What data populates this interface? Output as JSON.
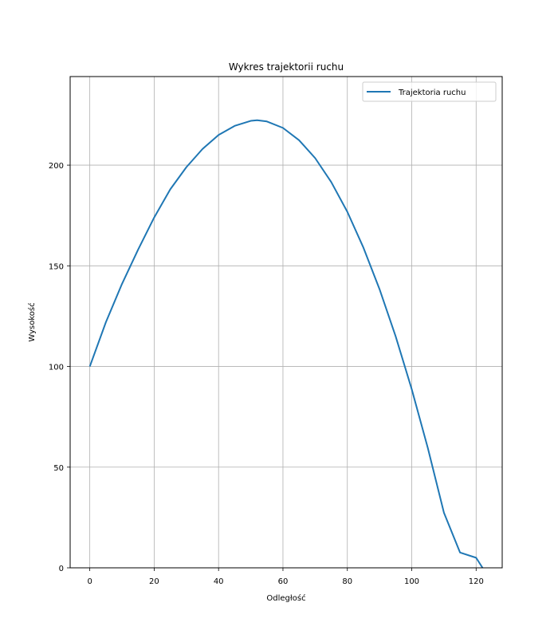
{
  "chart_data": {
    "type": "line",
    "title": "Wykres trajektorii ruchu",
    "xlabel": "Odległość",
    "ylabel": "Wysokość",
    "xlim": [
      -6.1,
      128.1
    ],
    "ylim": [
      0,
      244
    ],
    "x_ticks": [
      0,
      20,
      40,
      60,
      80,
      100,
      120
    ],
    "y_ticks": [
      0,
      50,
      100,
      150,
      200
    ],
    "grid": true,
    "legend_position": "upper right",
    "series": [
      {
        "name": "Trajektoria ruchu",
        "color": "#1f77b4",
        "x": [
          0,
          5,
          10,
          15,
          20,
          25,
          30,
          35,
          40,
          45,
          50,
          52,
          55,
          60,
          65,
          70,
          75,
          80,
          85,
          90,
          95,
          100,
          105,
          110,
          115,
          120,
          122
        ],
        "y": [
          100,
          122,
          141,
          158,
          174,
          188,
          199,
          208,
          215,
          219.5,
          222,
          222.3,
          221.7,
          218.5,
          212.4,
          203.5,
          191.6,
          176.8,
          159,
          138.4,
          115,
          88.7,
          59.5,
          27.4,
          7.6,
          5,
          0
        ]
      }
    ]
  }
}
